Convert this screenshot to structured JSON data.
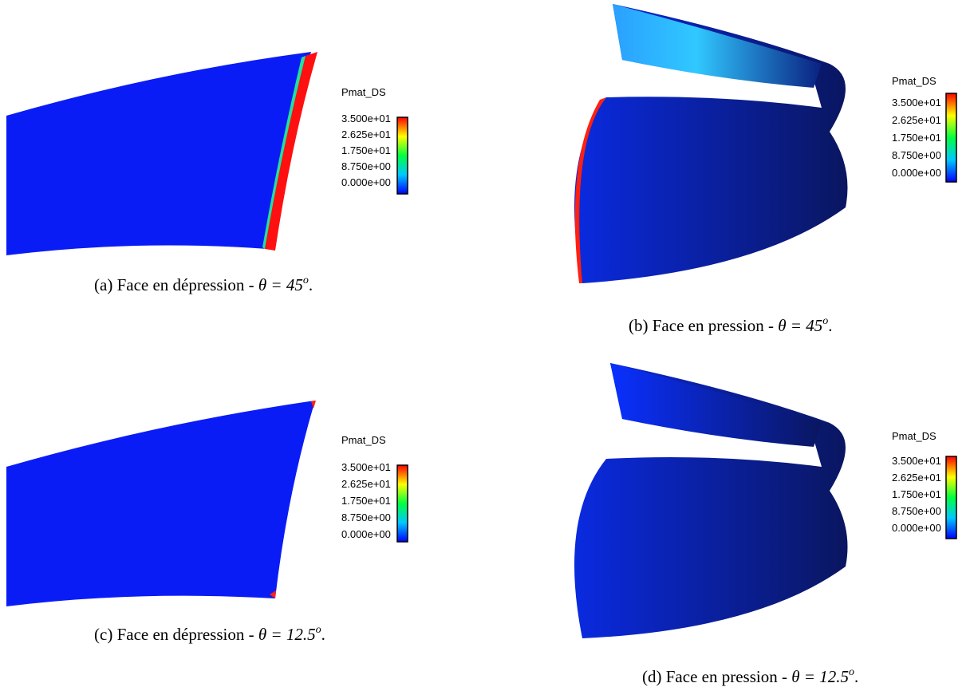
{
  "figures": [
    {
      "legend": {
        "title": "Pmat_DS",
        "ticks": [
          "3.500e+01",
          "2.625e+01",
          "1.750e+01",
          "8.750e+00",
          "0.000e+00"
        ]
      },
      "caption": {
        "label": "(a)",
        "text": "Face en dépression -",
        "math": "θ = 45",
        "sup": "o",
        "end": "."
      }
    },
    {
      "legend": {
        "title": "Pmat_DS",
        "ticks": [
          "3.500e+01",
          "2.625e+01",
          "1.750e+01",
          "8.750e+00",
          "0.000e+00"
        ]
      },
      "caption": {
        "label": "(b)",
        "text": "Face en pression -",
        "math": "θ = 45",
        "sup": "o",
        "end": "."
      }
    },
    {
      "legend": {
        "title": "Pmat_DS",
        "ticks": [
          "3.500e+01",
          "2.625e+01",
          "1.750e+01",
          "8.750e+00",
          "0.000e+00"
        ]
      },
      "caption": {
        "label": "(c)",
        "text": "Face en dépression -",
        "math": "θ = 12.5",
        "sup": "o",
        "end": "."
      }
    },
    {
      "legend": {
        "title": "Pmat_DS",
        "ticks": [
          "3.500e+01",
          "2.625e+01",
          "1.750e+01",
          "8.750e+00",
          "0.000e+00"
        ]
      },
      "caption": {
        "label": "(d)",
        "text": "Face en pression -",
        "math": "θ = 12.5",
        "sup": "o",
        "end": "."
      }
    }
  ]
}
